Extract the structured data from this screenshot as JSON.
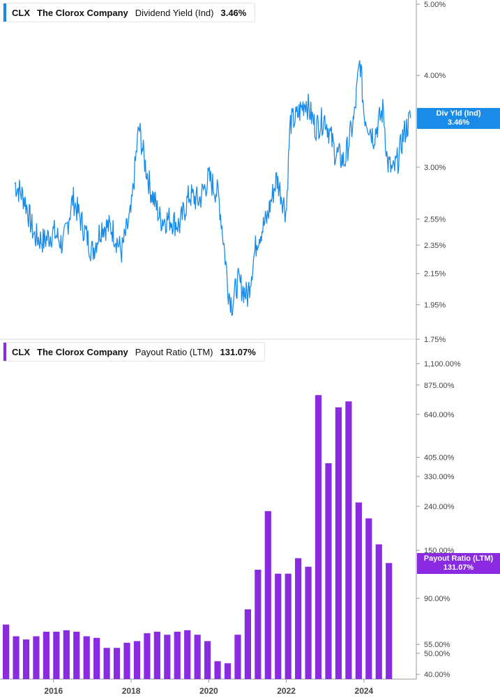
{
  "legend_top": {
    "ticker": "CLX",
    "company": "The Clorox Company",
    "metric": "Dividend Yield (Ind)",
    "value": "3.46%"
  },
  "legend_bottom": {
    "ticker": "CLX",
    "company": "The Clorox Company",
    "metric": "Payout Ratio (LTM)",
    "value": "131.07%"
  },
  "tag_top": {
    "label": "Div Yld (Ind)",
    "value": "3.46%"
  },
  "tag_bottom": {
    "label": "Payout Ratio (LTM)",
    "value": "131.07%"
  },
  "colors": {
    "yield": "#1a8ce8",
    "payout": "#8a2be2",
    "grid": "#d9d9d9",
    "axis": "#999999"
  },
  "chart_data": [
    {
      "type": "line",
      "title": "",
      "series": [
        {
          "name": "Dividend Yield (Ind)",
          "x": [
            2015.0,
            2015.25,
            2015.5,
            2015.75,
            2016.0,
            2016.25,
            2016.5,
            2016.75,
            2017.0,
            2017.25,
            2017.5,
            2017.75,
            2018.0,
            2018.2,
            2018.35,
            2018.5,
            2018.75,
            2019.0,
            2019.25,
            2019.5,
            2019.75,
            2020.0,
            2020.25,
            2020.5,
            2020.6,
            2020.75,
            2021.0,
            2021.25,
            2021.5,
            2021.75,
            2022.0,
            2022.1,
            2022.25,
            2022.5,
            2022.75,
            2023.0,
            2023.25,
            2023.5,
            2023.75,
            2023.9,
            2024.0,
            2024.25,
            2024.5,
            2024.6,
            2024.75,
            2024.9,
            2025.0,
            2025.2
          ],
          "values": [
            2.85,
            2.72,
            2.42,
            2.38,
            2.45,
            2.35,
            2.72,
            2.5,
            2.3,
            2.5,
            2.48,
            2.3,
            2.6,
            3.4,
            3.05,
            2.8,
            2.55,
            2.55,
            2.5,
            2.75,
            2.7,
            2.9,
            2.75,
            2.05,
            1.95,
            2.1,
            2.0,
            2.4,
            2.55,
            2.9,
            2.6,
            3.45,
            3.5,
            3.7,
            3.4,
            3.5,
            3.15,
            3.05,
            3.5,
            4.2,
            3.55,
            3.3,
            3.6,
            3.05,
            2.95,
            3.1,
            3.3,
            3.5
          ]
        }
      ],
      "y_scale": "log",
      "ylim": [
        1.75,
        5.0
      ],
      "y_ticks": [
        "5.00%",
        "4.00%",
        "3.00%",
        "2.55%",
        "2.35%",
        "2.15%",
        "1.95%",
        "1.75%"
      ],
      "y_tick_values": [
        5.0,
        4.0,
        3.0,
        2.55,
        2.35,
        2.15,
        1.95,
        1.75
      ]
    },
    {
      "type": "bar",
      "title": "",
      "series": [
        {
          "name": "Payout Ratio (LTM)",
          "values": [
            68,
            60,
            58,
            60,
            63,
            63,
            64,
            63,
            60,
            59,
            53,
            53,
            56,
            57,
            62,
            63,
            61,
            63,
            64,
            61,
            57,
            46,
            45,
            61,
            80,
            122,
            228,
            117,
            117,
            138,
            126,
            786,
            380,
            690,
            735,
            250,
            211,
            160,
            131.07
          ]
        }
      ],
      "y_scale": "log",
      "ylim": [
        38,
        1100
      ],
      "y_ticks": [
        "1,100.00%",
        "875.00%",
        "640.00%",
        "405.00%",
        "330.00%",
        "240.00%",
        "150.00%",
        "90.00%",
        "55.00%",
        "50.00%",
        "40.00%"
      ],
      "y_tick_values": [
        1100,
        875,
        640,
        405,
        330,
        240,
        150,
        90,
        55,
        50,
        40
      ]
    }
  ],
  "x_axis": {
    "labels": [
      "2016",
      "2018",
      "2020",
      "2022",
      "2024"
    ],
    "values": [
      2016,
      2018,
      2020,
      2022,
      2024
    ],
    "range": [
      2014.62,
      2025.35
    ]
  }
}
